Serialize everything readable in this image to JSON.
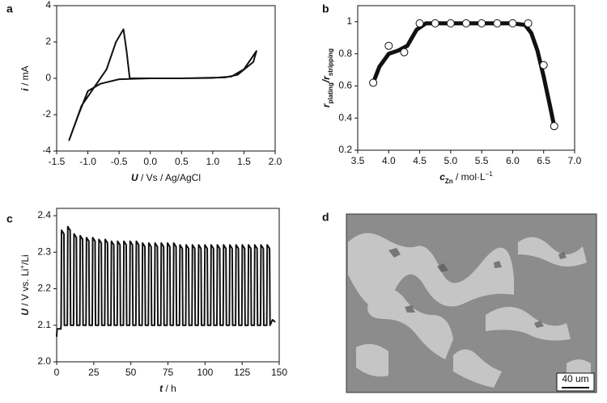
{
  "chart_data": [
    {
      "type": "line",
      "panel": "a",
      "xlabel": [
        "U",
        " / Vs / Ag/AgCl"
      ],
      "ylabel": [
        "i",
        " / mA"
      ],
      "xlim": [
        -1.5,
        2.0
      ],
      "xticks": [
        -1.5,
        {
          "value": -1.0,
          "label": "-1.0"
        },
        -0.5,
        {
          "value": 0.0,
          "label": "0.0"
        },
        0.5,
        {
          "value": 1.0,
          "label": "1.0"
        },
        1.5,
        {
          "value": 2.0,
          "label": "2.0"
        }
      ],
      "ylim": [
        -4,
        4
      ],
      "yticks": [
        -4,
        -2,
        0,
        2,
        4
      ],
      "series": [
        {
          "color": "#111111",
          "x": [
            -1.3,
            -1.1,
            -0.9,
            -0.7,
            -0.55,
            -0.43,
            -0.38,
            -0.33,
            0.0,
            0.5,
            1.0,
            1.3,
            1.5,
            1.7,
            1.65,
            1.4,
            1.2,
            0.5,
            0.0,
            -0.5,
            -0.8,
            -1.0,
            -1.15,
            -1.3
          ],
          "values": [
            -3.4,
            -1.5,
            -0.5,
            0.5,
            2.0,
            2.7,
            1.5,
            0.0,
            0.0,
            0.0,
            0.02,
            0.1,
            0.5,
            1.5,
            0.9,
            0.2,
            0.05,
            0.0,
            0.0,
            -0.05,
            -0.3,
            -0.7,
            -2.0,
            -3.4
          ]
        }
      ]
    },
    {
      "type": "scatter",
      "panel": "b",
      "xlabel": [
        "c",
        "Zn",
        " / mol·L",
        "−1"
      ],
      "ylabel": [
        "r",
        "plating",
        "/",
        "r",
        "stripping"
      ],
      "xlim": [
        3.5,
        7.0
      ],
      "xticks": [
        3.5,
        {
          "value": 4.0,
          "label": "4.0"
        },
        4.5,
        {
          "value": 5.0,
          "label": "5.0"
        },
        5.5,
        {
          "value": 6.0,
          "label": "6.0"
        },
        6.5,
        {
          "value": 7.0,
          "label": "7.0"
        }
      ],
      "ylim": [
        0.2,
        1.1
      ],
      "yticks": [
        0.2,
        0.4,
        0.6,
        0.8,
        1
      ],
      "series": [
        {
          "color": "#ffffff",
          "x": [
            3.75,
            4.0,
            4.25,
            4.5,
            4.75,
            5.0,
            5.25,
            5.5,
            5.75,
            6.0,
            6.25,
            6.5,
            6.67
          ],
          "values": [
            0.62,
            0.85,
            0.81,
            0.99,
            0.99,
            0.99,
            0.99,
            0.99,
            0.99,
            0.99,
            0.99,
            0.73,
            0.35
          ]
        }
      ],
      "fit": {
        "color": "#111111",
        "x": [
          3.75,
          3.85,
          4.0,
          4.15,
          4.3,
          4.45,
          4.6,
          5.0,
          5.5,
          6.0,
          6.2,
          6.3,
          6.4,
          6.5,
          6.6,
          6.67
        ],
        "values": [
          0.62,
          0.72,
          0.8,
          0.82,
          0.85,
          0.95,
          0.99,
          0.99,
          0.99,
          0.99,
          0.98,
          0.93,
          0.82,
          0.66,
          0.48,
          0.35
        ]
      }
    },
    {
      "type": "line",
      "panel": "c",
      "xlabel": [
        "t",
        " / h"
      ],
      "ylabel": [
        "U",
        " / V vs. Li",
        "+",
        "/Li"
      ],
      "xlim": [
        0,
        150
      ],
      "xticks": [
        0,
        25,
        50,
        75,
        100,
        125,
        150
      ],
      "ylim": [
        2.0,
        2.42
      ],
      "yticks": [
        {
          "value": 2.0,
          "label": "2.0"
        },
        2.1,
        2.2,
        2.3,
        2.4
      ],
      "series": [
        {
          "color": "#111111",
          "x": [
            0,
            0.3,
            2.8,
            3.0,
            3.3,
            4.9,
            5.2,
            7.2,
            7.5,
            9.1,
            9.4,
            11.4,
            11.7,
            13.3,
            13.6,
            15.6,
            15.9,
            17.5,
            17.8,
            19.8,
            20.1,
            21.7,
            22.0,
            24.0,
            24.3,
            25.9,
            26.2,
            28.2,
            28.5,
            30.1,
            30.4,
            32.4,
            32.7,
            34.3,
            34.6,
            36.6,
            36.9,
            38.5,
            38.8,
            40.8,
            41.1,
            42.7,
            43.0,
            45.0,
            45.3,
            46.9,
            47.2,
            49.2,
            49.5,
            51.1,
            51.4,
            53.4,
            53.7,
            55.3,
            55.6,
            57.6,
            57.9,
            59.5,
            59.8,
            61.8,
            62.1,
            63.7,
            64.0,
            66.0,
            66.3,
            67.9,
            68.2,
            70.2,
            70.5,
            72.1,
            72.4,
            74.4,
            74.7,
            76.3,
            76.6,
            78.6,
            78.9,
            80.5,
            80.8,
            82.8,
            83.1,
            84.7,
            85.0,
            87.0,
            87.3,
            88.9,
            89.2,
            91.2,
            91.5,
            93.1,
            93.4,
            95.4,
            95.7,
            97.3,
            97.6,
            99.6,
            99.9,
            101.5,
            101.8,
            103.8,
            104.1,
            105.7,
            106.0,
            108.0,
            108.3,
            109.9,
            110.2,
            112.2,
            112.5,
            114.1,
            114.4,
            116.4,
            116.7,
            118.3,
            118.6,
            120.6,
            120.9,
            122.5,
            122.8,
            124.8,
            125.1,
            126.7,
            127.0,
            129.0,
            129.3,
            130.9,
            131.2,
            133.2,
            133.5,
            135.1,
            135.4,
            137.4,
            137.7,
            139.3,
            139.6,
            141.6,
            141.9,
            143.5,
            143.8,
            145.5,
            147
          ],
          "values": [
            2.07,
            2.09,
            2.09,
            2.1,
            2.36,
            2.35,
            2.1,
            2.1,
            2.37,
            2.36,
            2.1,
            2.1,
            2.35,
            2.34,
            2.1,
            2.1,
            2.345,
            2.335,
            2.1,
            2.1,
            2.34,
            2.33,
            2.1,
            2.1,
            2.34,
            2.33,
            2.1,
            2.1,
            2.335,
            2.325,
            2.1,
            2.1,
            2.335,
            2.325,
            2.1,
            2.1,
            2.33,
            2.32,
            2.1,
            2.1,
            2.33,
            2.32,
            2.1,
            2.1,
            2.33,
            2.32,
            2.1,
            2.1,
            2.33,
            2.32,
            2.1,
            2.1,
            2.33,
            2.32,
            2.1,
            2.1,
            2.325,
            2.315,
            2.1,
            2.1,
            2.325,
            2.315,
            2.1,
            2.1,
            2.325,
            2.315,
            2.1,
            2.1,
            2.325,
            2.315,
            2.1,
            2.1,
            2.325,
            2.315,
            2.1,
            2.1,
            2.325,
            2.315,
            2.1,
            2.1,
            2.32,
            2.31,
            2.1,
            2.1,
            2.32,
            2.31,
            2.1,
            2.1,
            2.32,
            2.31,
            2.1,
            2.1,
            2.32,
            2.31,
            2.1,
            2.1,
            2.32,
            2.31,
            2.1,
            2.1,
            2.32,
            2.31,
            2.1,
            2.1,
            2.32,
            2.31,
            2.1,
            2.1,
            2.32,
            2.31,
            2.1,
            2.1,
            2.32,
            2.31,
            2.1,
            2.1,
            2.32,
            2.31,
            2.1,
            2.1,
            2.32,
            2.31,
            2.1,
            2.1,
            2.32,
            2.31,
            2.1,
            2.1,
            2.32,
            2.31,
            2.1,
            2.1,
            2.32,
            2.31,
            2.1,
            2.1,
            2.32,
            2.31,
            2.1,
            2.115,
            2.11
          ]
        }
      ]
    }
  ],
  "image_panel": {
    "panel": "d",
    "scale_bar": "40 um"
  }
}
